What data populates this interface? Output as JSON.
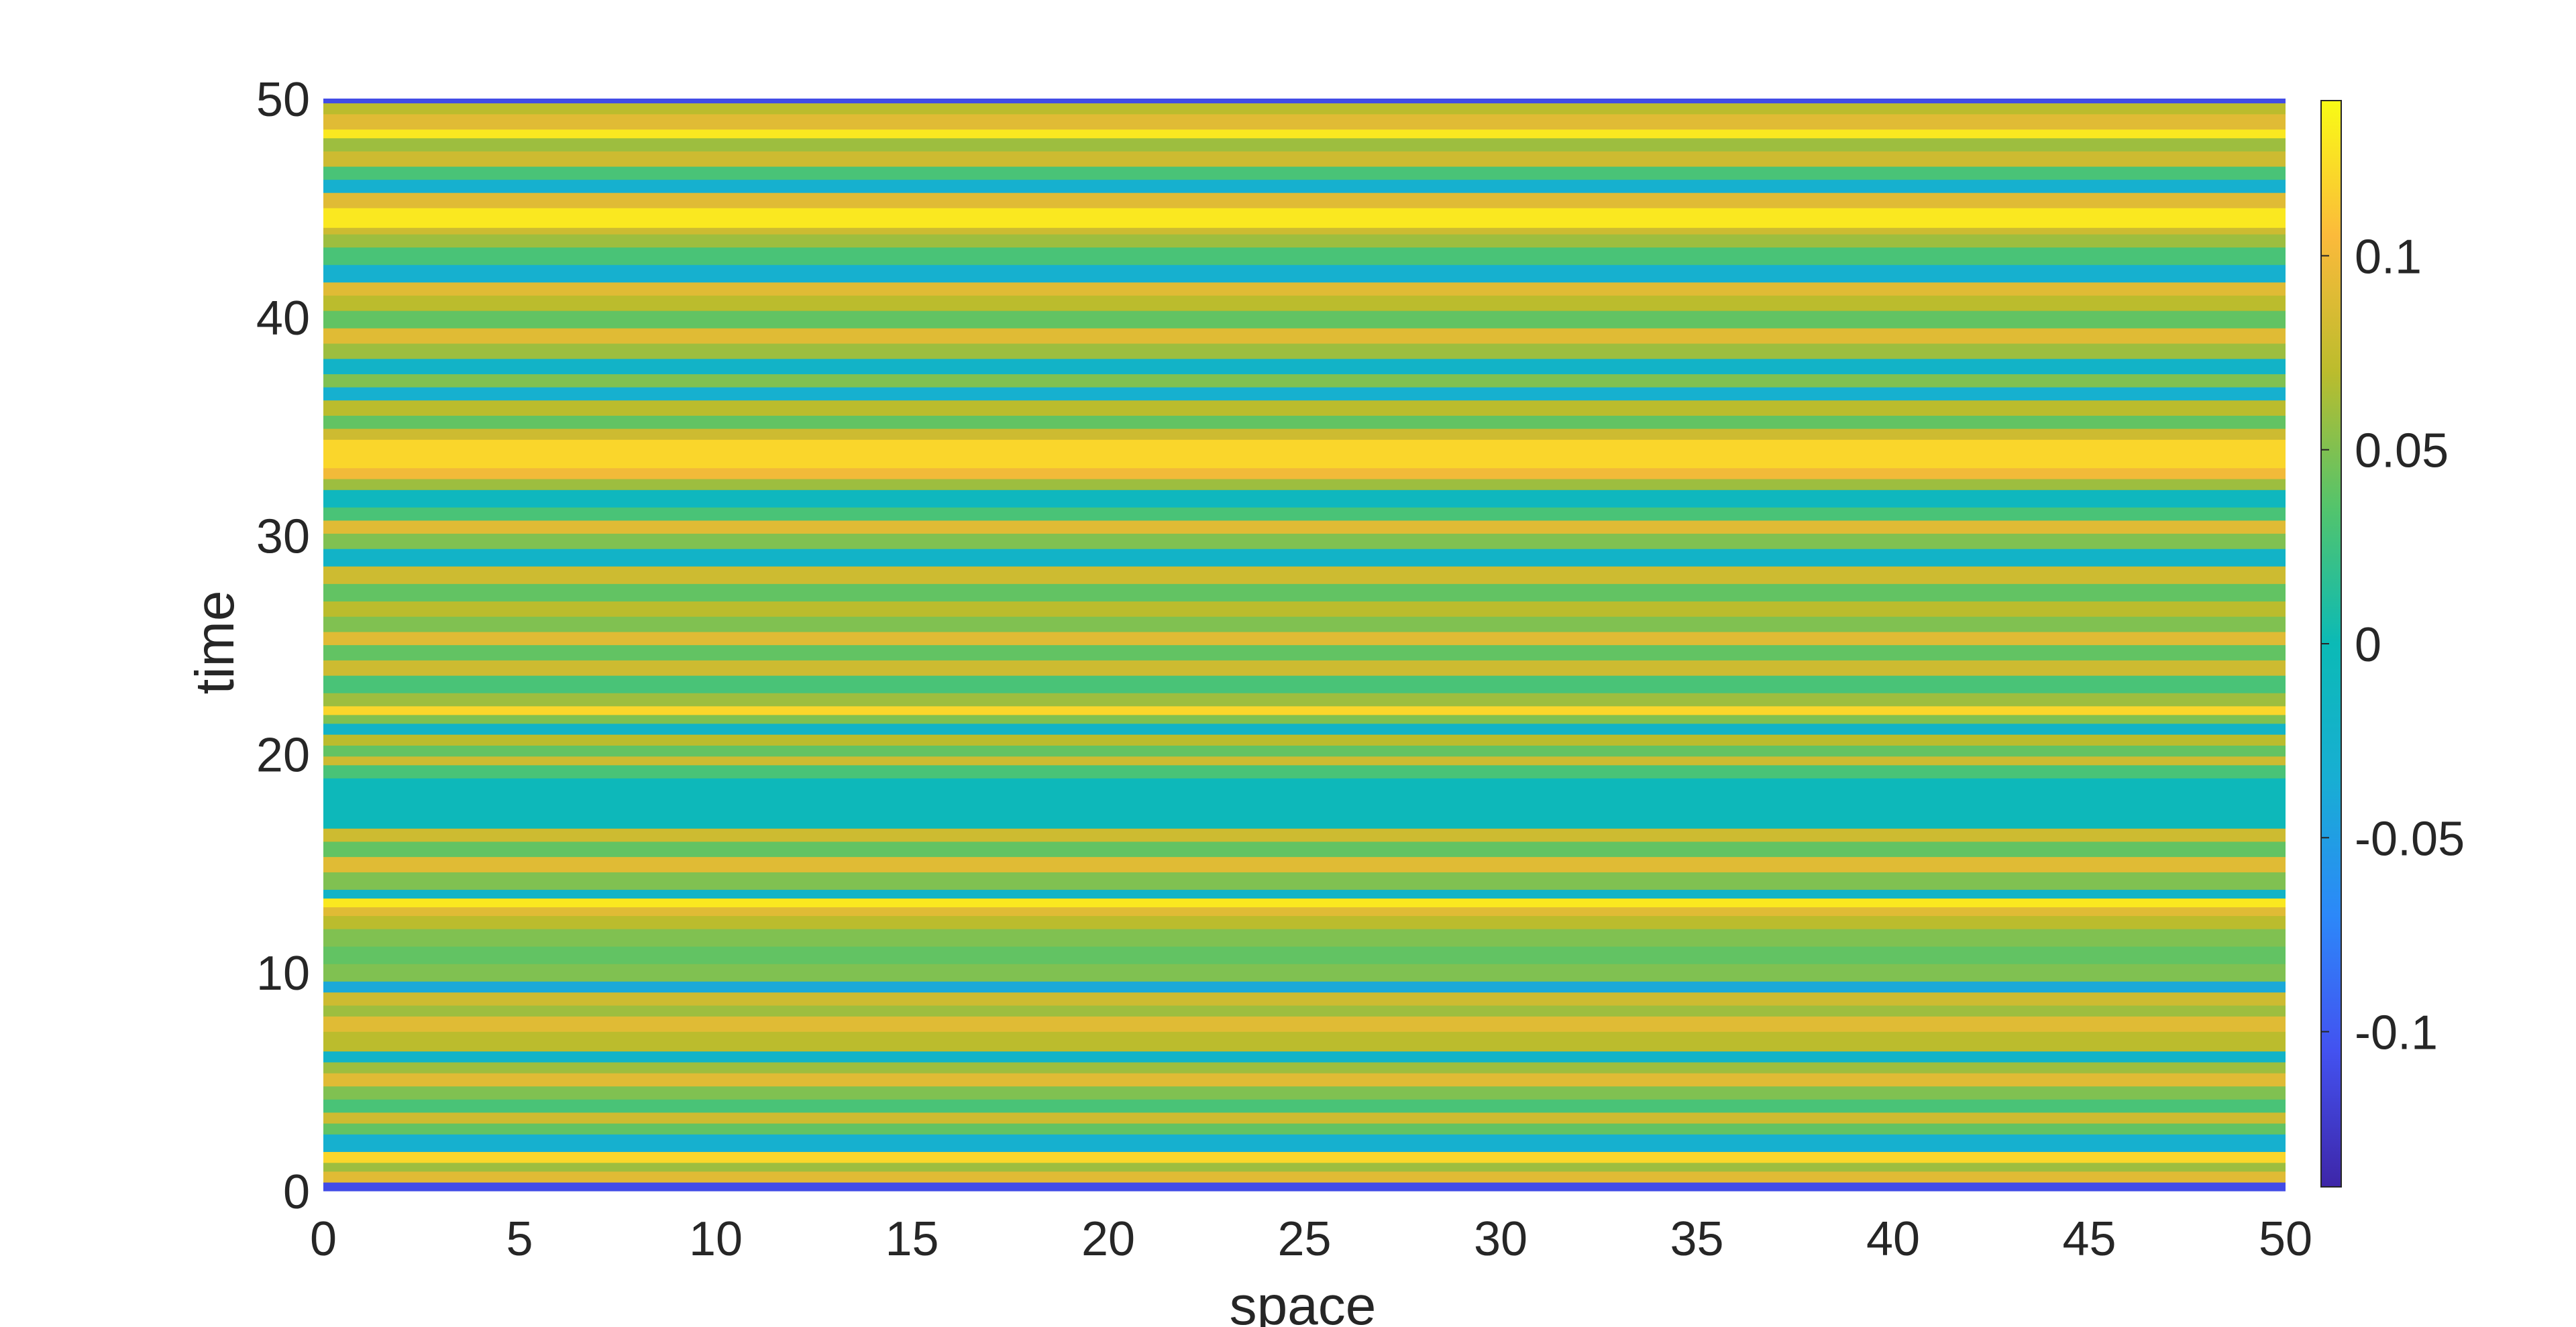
{
  "chart_data": {
    "type": "heatmap",
    "title": "",
    "xlabel": "space",
    "ylabel": "time",
    "xlim": [
      0,
      50
    ],
    "ylim": [
      0,
      50
    ],
    "xticks": [
      "0",
      "5",
      "10",
      "15",
      "20",
      "25",
      "30",
      "35",
      "40",
      "45",
      "50"
    ],
    "yticks": [
      "0",
      "10",
      "20",
      "30",
      "40",
      "50"
    ],
    "colorbar": {
      "colormap": "parula",
      "range": [
        -0.14,
        0.14
      ],
      "ticks": [
        "-0.1",
        "-0.05",
        "0",
        "0.05",
        "0.1"
      ],
      "tick_values": [
        -0.1,
        -0.05,
        0,
        0.05,
        0.1
      ]
    },
    "pattern": "constant along space, varies along time",
    "bands": [
      {
        "t0": 0.0,
        "t1": 0.4,
        "value": -0.11
      },
      {
        "t0": 0.4,
        "t1": 0.9,
        "value": 0.09
      },
      {
        "t0": 0.9,
        "t1": 1.3,
        "value": 0.06
      },
      {
        "t0": 1.3,
        "t1": 1.8,
        "value": 0.12
      },
      {
        "t0": 1.8,
        "t1": 2.6,
        "value": -0.03
      },
      {
        "t0": 2.6,
        "t1": 3.1,
        "value": 0.04
      },
      {
        "t0": 3.1,
        "t1": 3.6,
        "value": 0.08
      },
      {
        "t0": 3.6,
        "t1": 4.2,
        "value": 0.03
      },
      {
        "t0": 4.2,
        "t1": 4.8,
        "value": 0.05
      },
      {
        "t0": 4.8,
        "t1": 5.4,
        "value": 0.09
      },
      {
        "t0": 5.4,
        "t1": 5.9,
        "value": 0.06
      },
      {
        "t0": 5.9,
        "t1": 6.4,
        "value": -0.02
      },
      {
        "t0": 6.4,
        "t1": 7.3,
        "value": 0.07
      },
      {
        "t0": 7.3,
        "t1": 8.0,
        "value": 0.09
      },
      {
        "t0": 8.0,
        "t1": 8.5,
        "value": 0.06
      },
      {
        "t0": 8.5,
        "t1": 9.1,
        "value": 0.08
      },
      {
        "t0": 9.1,
        "t1": 9.6,
        "value": -0.04
      },
      {
        "t0": 9.6,
        "t1": 10.4,
        "value": 0.05
      },
      {
        "t0": 10.4,
        "t1": 11.2,
        "value": 0.04
      },
      {
        "t0": 11.2,
        "t1": 12.0,
        "value": 0.05
      },
      {
        "t0": 12.0,
        "t1": 12.6,
        "value": 0.07
      },
      {
        "t0": 12.6,
        "t1": 13.0,
        "value": 0.09
      },
      {
        "t0": 13.0,
        "t1": 13.4,
        "value": 0.13
      },
      {
        "t0": 13.4,
        "t1": 13.8,
        "value": -0.02
      },
      {
        "t0": 13.8,
        "t1": 14.6,
        "value": 0.05
      },
      {
        "t0": 14.6,
        "t1": 15.3,
        "value": 0.09
      },
      {
        "t0": 15.3,
        "t1": 16.0,
        "value": 0.04
      },
      {
        "t0": 16.0,
        "t1": 16.6,
        "value": 0.08
      },
      {
        "t0": 16.6,
        "t1": 18.9,
        "value": -0.005
      },
      {
        "t0": 18.9,
        "t1": 19.5,
        "value": 0.03
      },
      {
        "t0": 19.5,
        "t1": 19.9,
        "value": 0.08
      },
      {
        "t0": 19.9,
        "t1": 20.4,
        "value": 0.04
      },
      {
        "t0": 20.4,
        "t1": 20.9,
        "value": 0.07
      },
      {
        "t0": 20.9,
        "t1": 21.4,
        "value": -0.02
      },
      {
        "t0": 21.4,
        "t1": 21.8,
        "value": 0.05
      },
      {
        "t0": 21.8,
        "t1": 22.2,
        "value": 0.12
      },
      {
        "t0": 22.2,
        "t1": 22.8,
        "value": 0.06
      },
      {
        "t0": 22.8,
        "t1": 23.6,
        "value": 0.03
      },
      {
        "t0": 23.6,
        "t1": 24.3,
        "value": 0.08
      },
      {
        "t0": 24.3,
        "t1": 25.0,
        "value": 0.04
      },
      {
        "t0": 25.0,
        "t1": 25.6,
        "value": 0.09
      },
      {
        "t0": 25.6,
        "t1": 26.3,
        "value": 0.05
      },
      {
        "t0": 26.3,
        "t1": 27.0,
        "value": 0.07
      },
      {
        "t0": 27.0,
        "t1": 27.8,
        "value": 0.04
      },
      {
        "t0": 27.8,
        "t1": 28.6,
        "value": 0.08
      },
      {
        "t0": 28.6,
        "t1": 29.4,
        "value": -0.02
      },
      {
        "t0": 29.4,
        "t1": 30.1,
        "value": 0.05
      },
      {
        "t0": 30.1,
        "t1": 30.7,
        "value": 0.09
      },
      {
        "t0": 30.7,
        "t1": 31.3,
        "value": 0.03
      },
      {
        "t0": 31.3,
        "t1": 32.1,
        "value": -0.01
      },
      {
        "t0": 32.1,
        "t1": 32.6,
        "value": 0.06
      },
      {
        "t0": 32.6,
        "t1": 33.1,
        "value": 0.1
      },
      {
        "t0": 33.1,
        "t1": 34.4,
        "value": 0.12
      },
      {
        "t0": 34.4,
        "t1": 34.9,
        "value": 0.08
      },
      {
        "t0": 34.9,
        "t1": 35.5,
        "value": 0.04
      },
      {
        "t0": 35.5,
        "t1": 36.2,
        "value": 0.07
      },
      {
        "t0": 36.2,
        "t1": 36.8,
        "value": -0.03
      },
      {
        "t0": 36.8,
        "t1": 37.4,
        "value": 0.05
      },
      {
        "t0": 37.4,
        "t1": 38.1,
        "value": -0.02
      },
      {
        "t0": 38.1,
        "t1": 38.8,
        "value": 0.06
      },
      {
        "t0": 38.8,
        "t1": 39.5,
        "value": 0.09
      },
      {
        "t0": 39.5,
        "t1": 40.3,
        "value": 0.04
      },
      {
        "t0": 40.3,
        "t1": 41.0,
        "value": 0.07
      },
      {
        "t0": 41.0,
        "t1": 41.6,
        "value": 0.09
      },
      {
        "t0": 41.6,
        "t1": 42.4,
        "value": -0.03
      },
      {
        "t0": 42.4,
        "t1": 43.2,
        "value": 0.03
      },
      {
        "t0": 43.2,
        "t1": 43.8,
        "value": 0.06
      },
      {
        "t0": 43.8,
        "t1": 44.1,
        "value": 0.08
      },
      {
        "t0": 44.1,
        "t1": 45.0,
        "value": 0.13
      },
      {
        "t0": 45.0,
        "t1": 45.7,
        "value": 0.09
      },
      {
        "t0": 45.7,
        "t1": 46.3,
        "value": -0.03
      },
      {
        "t0": 46.3,
        "t1": 46.9,
        "value": 0.03
      },
      {
        "t0": 46.9,
        "t1": 47.6,
        "value": 0.08
      },
      {
        "t0": 47.6,
        "t1": 48.2,
        "value": 0.06
      },
      {
        "t0": 48.2,
        "t1": 48.6,
        "value": 0.13
      },
      {
        "t0": 48.6,
        "t1": 49.3,
        "value": 0.09
      },
      {
        "t0": 49.3,
        "t1": 49.8,
        "value": 0.07
      },
      {
        "t0": 49.8,
        "t1": 50.0,
        "value": -0.11
      }
    ]
  }
}
